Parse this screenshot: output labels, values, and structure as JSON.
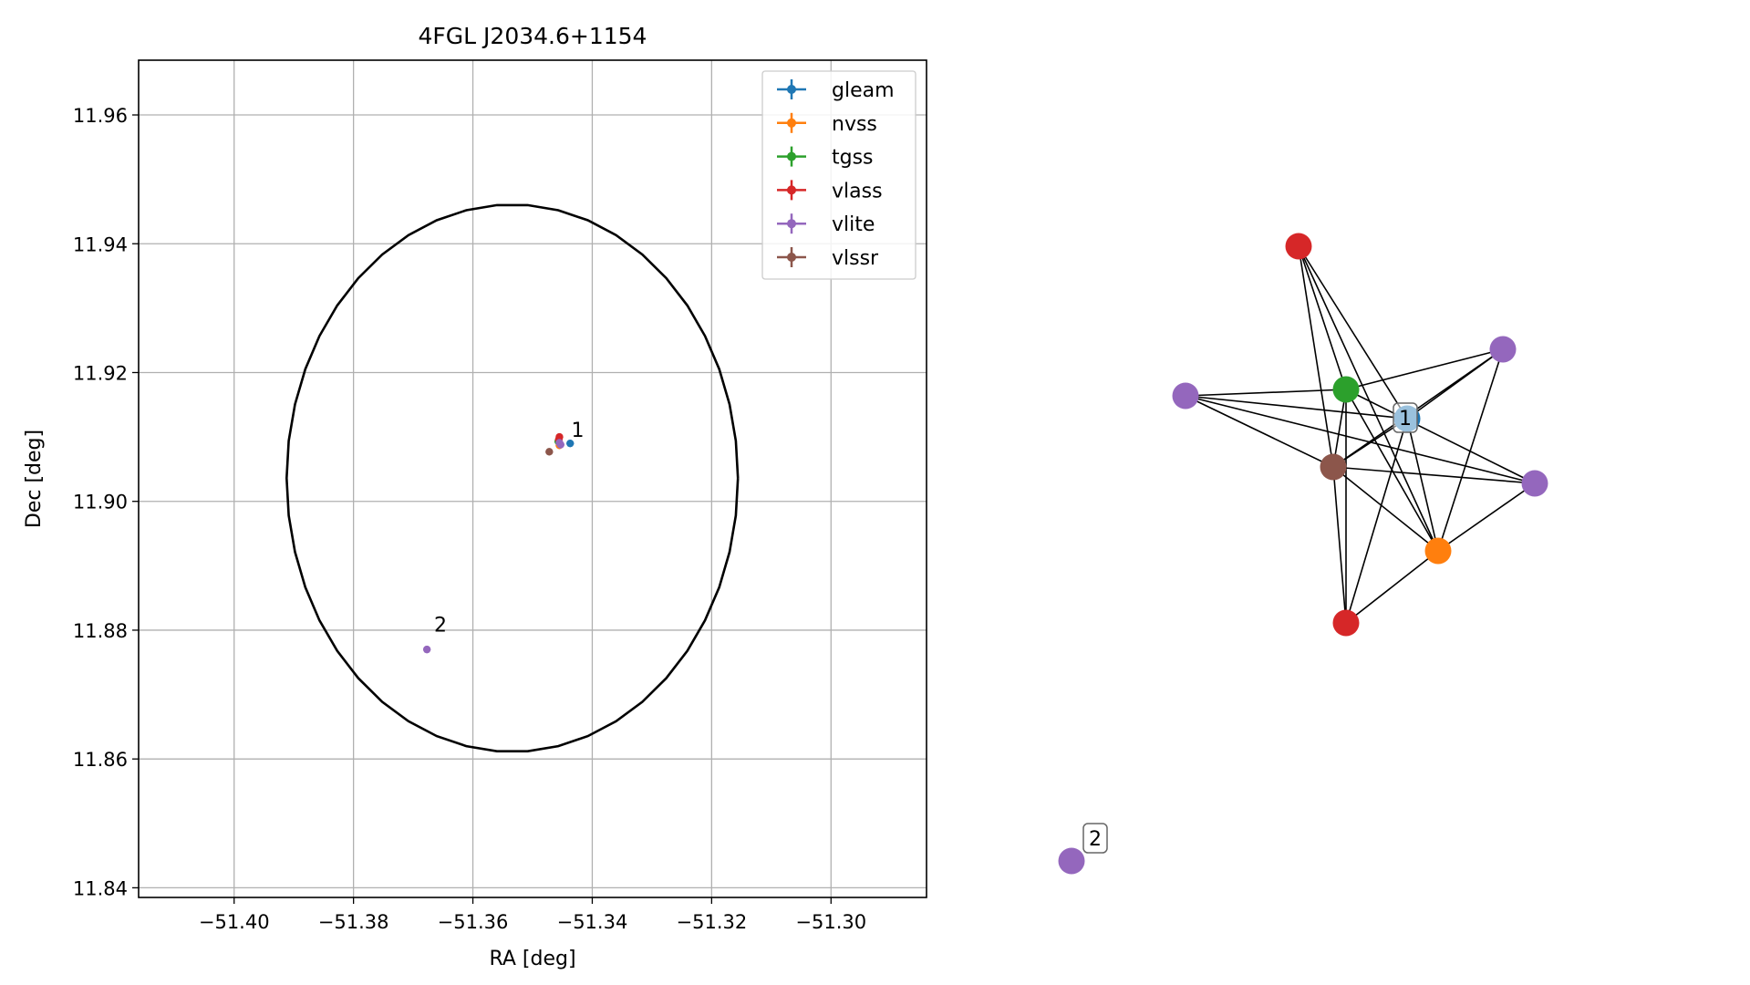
{
  "chart_data": [
    {
      "type": "scatter",
      "title": "4FGL J2034.6+1154",
      "xlabel": "RA [deg]",
      "ylabel": "Dec [deg]",
      "xlim": [
        -51.416,
        -51.284
      ],
      "ylim": [
        11.8385,
        11.9685
      ],
      "xticks": [
        -51.4,
        -51.38,
        -51.36,
        -51.34,
        -51.32,
        -51.3
      ],
      "xtick_labels": [
        "−51.40",
        "−51.38",
        "−51.36",
        "−51.34",
        "−51.32",
        "−51.30"
      ],
      "yticks": [
        11.84,
        11.86,
        11.88,
        11.9,
        11.92,
        11.94,
        11.96
      ],
      "ytick_labels": [
        "11.84",
        "11.86",
        "11.88",
        "11.90",
        "11.92",
        "11.94",
        "11.96"
      ],
      "grid": true,
      "legend_position": "top-right",
      "series": [
        {
          "name": "gleam",
          "color": "#1f77b4",
          "points": [
            {
              "x": -51.3437,
              "y": 11.909
            }
          ]
        },
        {
          "name": "nvss",
          "color": "#ff7f0e",
          "points": [
            {
              "x": -51.3455,
              "y": 11.9087
            }
          ]
        },
        {
          "name": "tgss",
          "color": "#2ca02c",
          "points": [
            {
              "x": -51.3457,
              "y": 11.9093
            }
          ]
        },
        {
          "name": "vlass",
          "color": "#d62728",
          "points": [
            {
              "x": -51.3455,
              "y": 11.91
            },
            {
              "x": -51.3456,
              "y": 11.9096
            }
          ]
        },
        {
          "name": "vlite",
          "color": "#9467bd",
          "points": [
            {
              "x": -51.3455,
              "y": 11.9091
            },
            {
              "x": -51.3453,
              "y": 11.9088
            },
            {
              "x": -51.3677,
              "y": 11.877
            }
          ]
        },
        {
          "name": "vlssr",
          "color": "#8c564b",
          "points": [
            {
              "x": -51.3472,
              "y": 11.9077
            }
          ]
        }
      ],
      "ellipse": {
        "center_x": -51.3534,
        "center_y": 11.9036,
        "ra_semi_axis": 0.0378,
        "dec_semi_axis": 0.0425
      },
      "annotations": [
        {
          "text": "1",
          "x": -51.3435,
          "y": 11.91
        },
        {
          "text": "2",
          "x": -51.3665,
          "y": 11.8798
        }
      ]
    }
  ],
  "network_graph": {
    "cluster_labels": [
      "1",
      "2"
    ],
    "nodes": [
      {
        "id": "gleam",
        "color": "#1f77b4"
      },
      {
        "id": "tgss",
        "color": "#2ca02c"
      },
      {
        "id": "vlass_top",
        "color": "#d62728"
      },
      {
        "id": "vlite_right_top",
        "color": "#9467bd"
      },
      {
        "id": "vlite_left",
        "color": "#9467bd"
      },
      {
        "id": "vlssr",
        "color": "#8c564b"
      },
      {
        "id": "vlite_right",
        "color": "#9467bd"
      },
      {
        "id": "nvss",
        "color": "#ff7f0e"
      },
      {
        "id": "vlass_bottom",
        "color": "#d62728"
      },
      {
        "id": "vlite_iso",
        "color": "#9467bd"
      }
    ]
  }
}
